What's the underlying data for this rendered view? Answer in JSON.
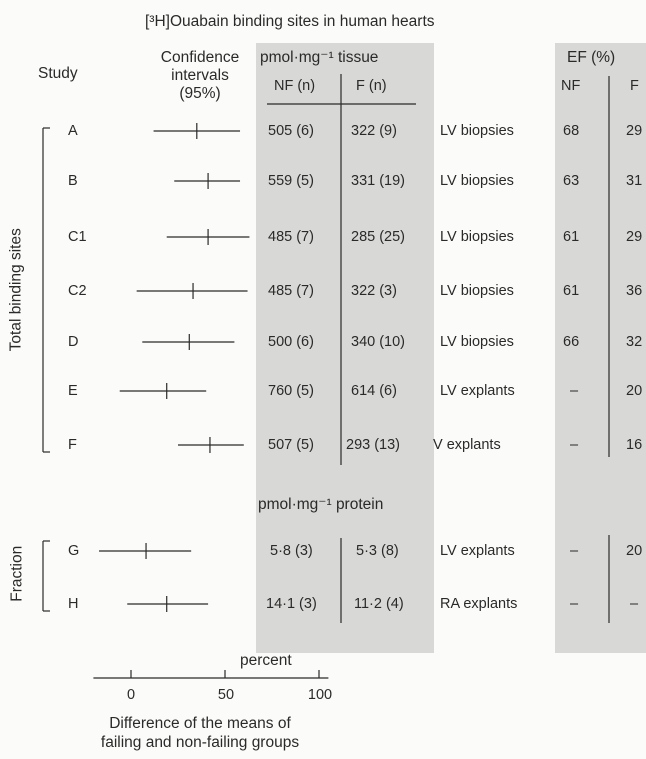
{
  "chart_data": {
    "type": "forest",
    "title": "[³H]Ouabain binding sites in human hearts",
    "column_headers": {
      "study": "Study",
      "ci": [
        "Confidence",
        "intervals",
        "(95%)"
      ],
      "units_tissue": "pmol·mg⁻¹ tissue",
      "units_protein": "pmol·mg⁻¹ protein",
      "nf": "NF (n)",
      "f": "F (n)",
      "ef": "EF (%)",
      "ef_nf": "NF",
      "ef_f": "F"
    },
    "groups": [
      {
        "label": "Total binding sites",
        "studies": [
          "A",
          "B",
          "C1",
          "C2",
          "D",
          "E",
          "F"
        ]
      },
      {
        "label": "Fraction",
        "studies": [
          "G",
          "H"
        ]
      }
    ],
    "studies": [
      {
        "id": "A",
        "mean": 35,
        "ci": [
          12,
          58
        ],
        "nf": "505 (6)",
        "f": "322 (9)",
        "sample": "LV biopsies",
        "ef_nf": "68",
        "ef_f": "29"
      },
      {
        "id": "B",
        "mean": 41,
        "ci": [
          23,
          58
        ],
        "nf": "559 (5)",
        "f": "331 (19)",
        "sample": "LV biopsies",
        "ef_nf": "63",
        "ef_f": "31"
      },
      {
        "id": "C1",
        "mean": 41,
        "ci": [
          19,
          63
        ],
        "nf": "485 (7)",
        "f": "285 (25)",
        "sample": "LV biopsies",
        "ef_nf": "61",
        "ef_f": "29"
      },
      {
        "id": "C2",
        "mean": 33,
        "ci": [
          3,
          62
        ],
        "nf": "485 (7)",
        "f": "322 (3)",
        "sample": "LV biopsies",
        "ef_nf": "61",
        "ef_f": "36"
      },
      {
        "id": "D",
        "mean": 31,
        "ci": [
          6,
          55
        ],
        "nf": "500 (6)",
        "f": "340 (10)",
        "sample": "LV biopsies",
        "ef_nf": "66",
        "ef_f": "32"
      },
      {
        "id": "E",
        "mean": 19,
        "ci": [
          -6,
          40
        ],
        "nf": "760 (5)",
        "f": "614 (6)",
        "sample": "LV explants",
        "ef_nf": "–",
        "ef_f": "20"
      },
      {
        "id": "F",
        "mean": 42,
        "ci": [
          25,
          60
        ],
        "nf": "507 (5)",
        "f": "293 (13)",
        "sample": "V explants",
        "ef_nf": "–",
        "ef_f": "16"
      },
      {
        "id": "G",
        "mean": 8,
        "ci": [
          -17,
          32
        ],
        "nf": "5·8 (3)",
        "f": "5·3 (8)",
        "sample": "LV explants",
        "ef_nf": "–",
        "ef_f": "20"
      },
      {
        "id": "H",
        "mean": 19,
        "ci": [
          -2,
          41
        ],
        "nf": "14·1 (3)",
        "f": "11·2 (4)",
        "sample": "RA explants",
        "ef_nf": "–",
        "ef_f": "–"
      }
    ],
    "x_axis": {
      "label_top": "percent",
      "label_bottom": [
        "Difference of the means of",
        "failing and non-failing groups"
      ],
      "ticks": [
        "0",
        "50",
        "100"
      ],
      "tick_values": [
        0,
        50,
        100
      ],
      "range": [
        -20,
        105
      ]
    },
    "colors": {
      "shade": "#d8d8d6",
      "ink": "#2a2a2a",
      "background": "#fbfbf9"
    }
  }
}
